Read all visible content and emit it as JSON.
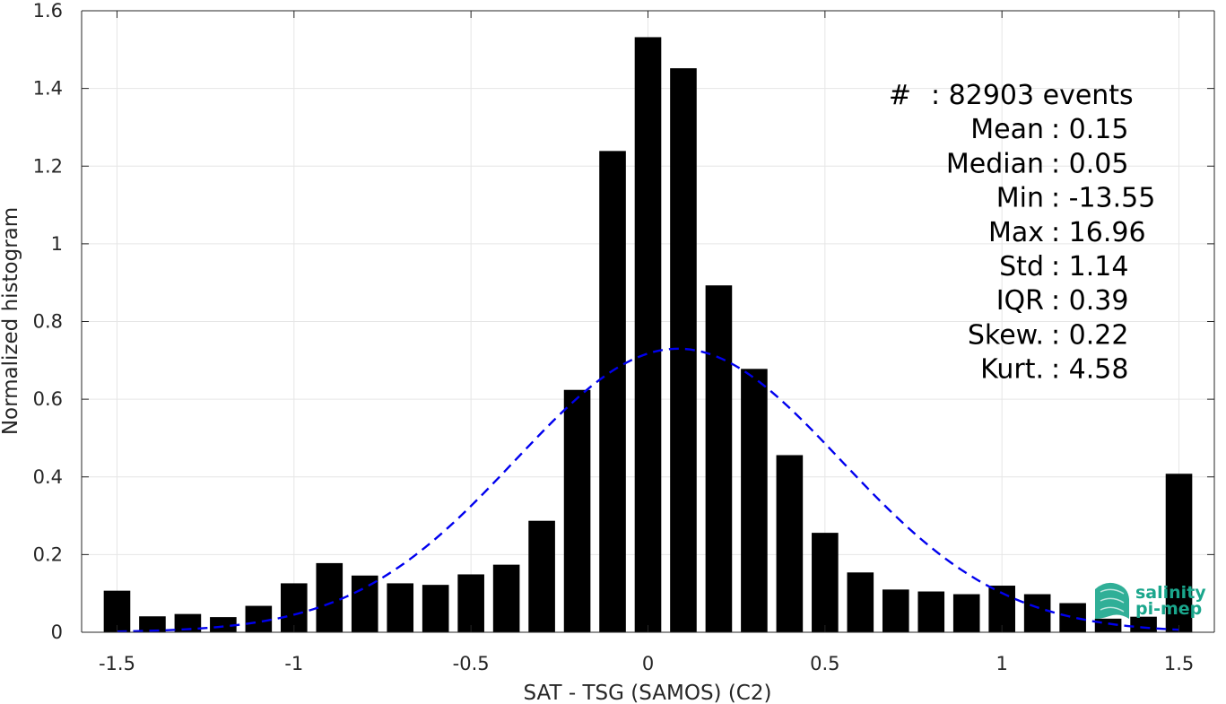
{
  "chart_data": {
    "type": "bar",
    "xlabel": "SAT - TSG (SAMOS) (C2)",
    "ylabel": "Normalized histogram",
    "xlim": [
      -1.6,
      1.6
    ],
    "ylim": [
      0,
      1.6
    ],
    "grid": true,
    "x_ticks": [
      {
        "value": -1.5,
        "label": "-1.5"
      },
      {
        "value": -1.0,
        "label": "-1"
      },
      {
        "value": -0.5,
        "label": "-0.5"
      },
      {
        "value": 0.0,
        "label": "0"
      },
      {
        "value": 0.5,
        "label": "0.5"
      },
      {
        "value": 1.0,
        "label": "1"
      },
      {
        "value": 1.5,
        "label": "1.5"
      }
    ],
    "y_ticks": [
      {
        "value": 0,
        "label": "0"
      },
      {
        "value": 0.2,
        "label": "0.2"
      },
      {
        "value": 0.4,
        "label": "0.4"
      },
      {
        "value": 0.6,
        "label": "0.6"
      },
      {
        "value": 0.8,
        "label": "0.8"
      },
      {
        "value": 1.0,
        "label": "1"
      },
      {
        "value": 1.2,
        "label": "1.2"
      },
      {
        "value": 1.4,
        "label": "1.4"
      },
      {
        "value": 1.6,
        "label": "1.6"
      }
    ],
    "bar_width": 0.075,
    "bars": {
      "x": [
        -1.5,
        -1.4,
        -1.3,
        -1.2,
        -1.1,
        -1.0,
        -0.9,
        -0.8,
        -0.7,
        -0.6,
        -0.5,
        -0.4,
        -0.3,
        -0.2,
        -0.1,
        0.0,
        0.1,
        0.2,
        0.3,
        0.4,
        0.5,
        0.6,
        0.7,
        0.8,
        0.9,
        1.0,
        1.1,
        1.2,
        1.3,
        1.4,
        1.5
      ],
      "values": [
        0.107,
        0.041,
        0.047,
        0.039,
        0.068,
        0.126,
        0.178,
        0.146,
        0.126,
        0.122,
        0.149,
        0.174,
        0.287,
        0.624,
        1.239,
        1.532,
        1.452,
        0.893,
        0.678,
        0.456,
        0.256,
        0.154,
        0.11,
        0.105,
        0.098,
        0.12,
        0.098,
        0.075,
        0.035,
        0.04,
        0.408
      ],
      "color": "#000000"
    },
    "fit_curve": {
      "style": "dashed",
      "color": "#0000ee",
      "mean": 0.085,
      "std": 0.46,
      "peak": 0.73,
      "x_range": [
        -1.5,
        1.5
      ]
    },
    "annotations": [
      {
        "label": "#",
        "value": ": 82903 events"
      },
      {
        "label": "Mean",
        "value": ": 0.15"
      },
      {
        "label": "Median",
        "value": ": 0.05"
      },
      {
        "label": "Min",
        "value": ": -13.55"
      },
      {
        "label": "Max",
        "value": ": 16.96"
      },
      {
        "label": "Std",
        "value": ": 1.14"
      },
      {
        "label": "IQR",
        "value": ": 0.39"
      },
      {
        "label": "Skew.",
        "value": ": 0.22"
      },
      {
        "label": "Kurt.",
        "value": ": 4.58"
      }
    ]
  },
  "logo": {
    "line1": "salinity",
    "line2": "pi-mep",
    "color": "#1aa68c"
  }
}
